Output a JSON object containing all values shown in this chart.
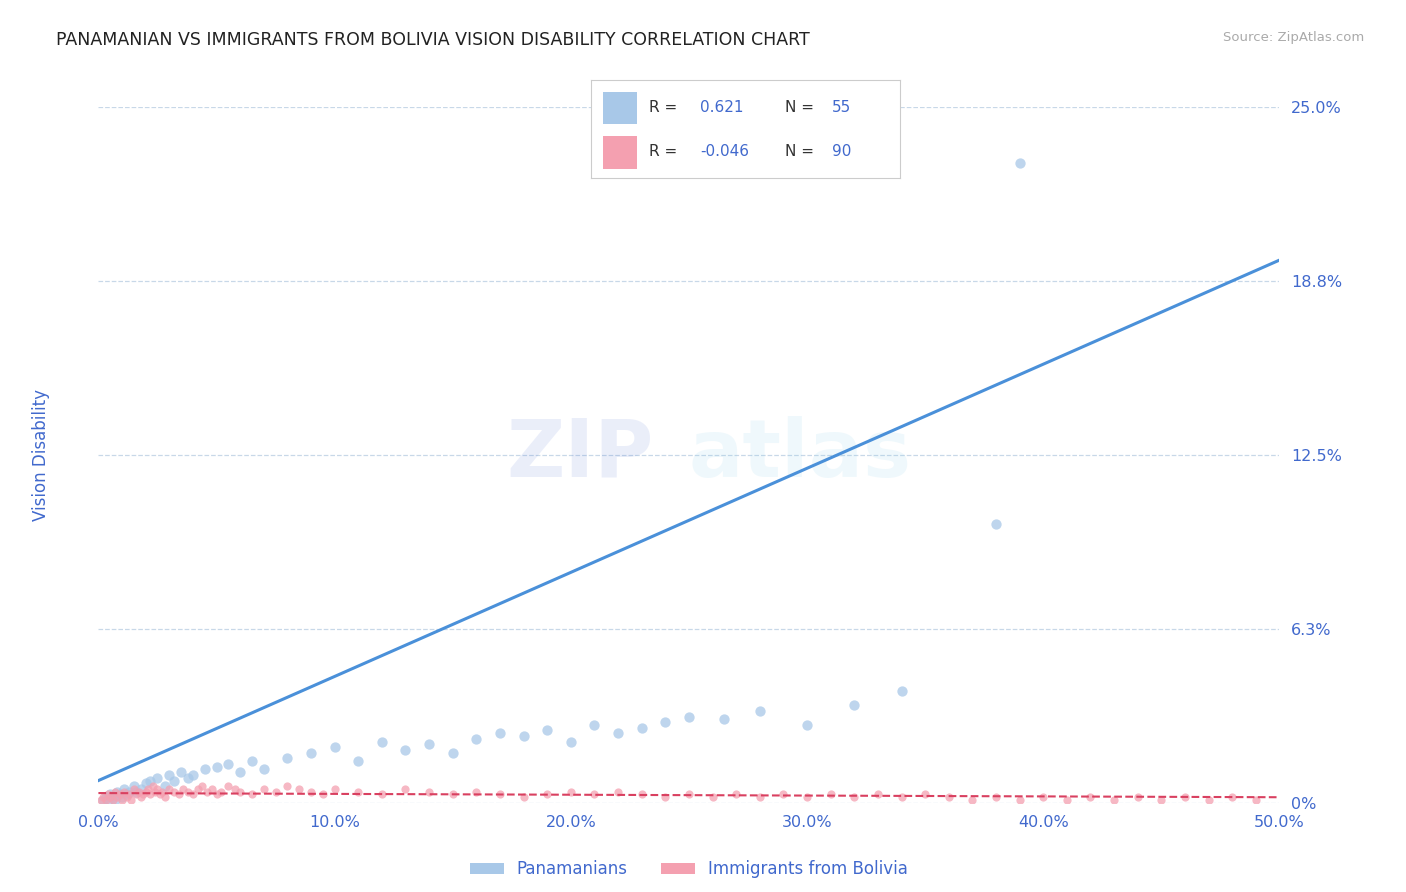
{
  "title": "PANAMANIAN VS IMMIGRANTS FROM BOLIVIA VISION DISABILITY CORRELATION CHART",
  "source": "Source: ZipAtlas.com",
  "ylabel": "Vision Disability",
  "legend_label1": "Panamanians",
  "legend_label2": "Immigrants from Bolivia",
  "R1": 0.621,
  "N1": 55,
  "R2": -0.046,
  "N2": 90,
  "xlim": [
    0.0,
    0.5
  ],
  "ylim": [
    0.0,
    0.25
  ],
  "xticks": [
    0.0,
    0.1,
    0.2,
    0.3,
    0.4,
    0.5
  ],
  "yticks": [
    0.0,
    0.0625,
    0.125,
    0.1875,
    0.25
  ],
  "ytick_labels": [
    "0%",
    "6.3%",
    "12.5%",
    "18.8%",
    "25.0%"
  ],
  "xtick_labels": [
    "0.0%",
    "10.0%",
    "20.0%",
    "30.0%",
    "40.0%",
    "50.0%"
  ],
  "blue_color": "#a8c8e8",
  "pink_color": "#f4a0b0",
  "line_blue": "#4a90d9",
  "line_pink": "#d94060",
  "text_color": "#4169CD",
  "watermark_zip": "ZIP",
  "watermark_atlas": "atlas",
  "background_color": "#ffffff",
  "grid_color": "#c8d8e8",
  "blue_scatter_x": [
    0.002,
    0.003,
    0.004,
    0.005,
    0.006,
    0.007,
    0.008,
    0.009,
    0.01,
    0.011,
    0.012,
    0.013,
    0.015,
    0.016,
    0.018,
    0.02,
    0.022,
    0.025,
    0.028,
    0.03,
    0.032,
    0.035,
    0.038,
    0.04,
    0.045,
    0.05,
    0.055,
    0.06,
    0.065,
    0.07,
    0.08,
    0.09,
    0.1,
    0.11,
    0.12,
    0.13,
    0.14,
    0.15,
    0.16,
    0.17,
    0.18,
    0.19,
    0.2,
    0.21,
    0.22,
    0.23,
    0.24,
    0.25,
    0.265,
    0.28,
    0.3,
    0.32,
    0.34,
    0.38,
    0.39
  ],
  "blue_scatter_y": [
    0.001,
    0.002,
    0.001,
    0.003,
    0.002,
    0.001,
    0.004,
    0.003,
    0.002,
    0.005,
    0.003,
    0.004,
    0.006,
    0.004,
    0.005,
    0.007,
    0.008,
    0.009,
    0.006,
    0.01,
    0.008,
    0.011,
    0.009,
    0.01,
    0.012,
    0.013,
    0.014,
    0.011,
    0.015,
    0.012,
    0.016,
    0.018,
    0.02,
    0.015,
    0.022,
    0.019,
    0.021,
    0.018,
    0.023,
    0.025,
    0.024,
    0.026,
    0.022,
    0.028,
    0.025,
    0.027,
    0.029,
    0.031,
    0.03,
    0.033,
    0.028,
    0.035,
    0.04,
    0.1,
    0.23
  ],
  "pink_scatter_x": [
    0.001,
    0.002,
    0.003,
    0.004,
    0.005,
    0.006,
    0.007,
    0.008,
    0.009,
    0.01,
    0.011,
    0.012,
    0.013,
    0.014,
    0.015,
    0.016,
    0.017,
    0.018,
    0.019,
    0.02,
    0.021,
    0.022,
    0.023,
    0.024,
    0.025,
    0.026,
    0.027,
    0.028,
    0.03,
    0.032,
    0.034,
    0.036,
    0.038,
    0.04,
    0.042,
    0.044,
    0.046,
    0.048,
    0.05,
    0.052,
    0.055,
    0.058,
    0.06,
    0.065,
    0.07,
    0.075,
    0.08,
    0.085,
    0.09,
    0.095,
    0.1,
    0.11,
    0.12,
    0.13,
    0.14,
    0.15,
    0.16,
    0.17,
    0.18,
    0.19,
    0.2,
    0.21,
    0.22,
    0.23,
    0.24,
    0.25,
    0.26,
    0.27,
    0.28,
    0.29,
    0.3,
    0.31,
    0.32,
    0.33,
    0.34,
    0.35,
    0.36,
    0.37,
    0.38,
    0.39,
    0.4,
    0.41,
    0.42,
    0.43,
    0.44,
    0.45,
    0.46,
    0.47,
    0.48,
    0.49
  ],
  "pink_scatter_y": [
    0.001,
    0.002,
    0.001,
    0.003,
    0.002,
    0.001,
    0.004,
    0.002,
    0.003,
    0.001,
    0.004,
    0.002,
    0.003,
    0.001,
    0.005,
    0.003,
    0.004,
    0.002,
    0.003,
    0.004,
    0.005,
    0.003,
    0.006,
    0.004,
    0.005,
    0.003,
    0.004,
    0.002,
    0.005,
    0.004,
    0.003,
    0.005,
    0.004,
    0.003,
    0.005,
    0.006,
    0.004,
    0.005,
    0.003,
    0.004,
    0.006,
    0.005,
    0.004,
    0.003,
    0.005,
    0.004,
    0.006,
    0.005,
    0.004,
    0.003,
    0.005,
    0.004,
    0.003,
    0.005,
    0.004,
    0.003,
    0.004,
    0.003,
    0.002,
    0.003,
    0.004,
    0.003,
    0.004,
    0.003,
    0.002,
    0.003,
    0.002,
    0.003,
    0.002,
    0.003,
    0.002,
    0.003,
    0.002,
    0.003,
    0.002,
    0.003,
    0.002,
    0.001,
    0.002,
    0.001,
    0.002,
    0.001,
    0.002,
    0.001,
    0.002,
    0.001,
    0.002,
    0.001,
    0.002,
    0.001
  ],
  "blue_line_x": [
    0.0,
    0.5
  ],
  "blue_line_y": [
    0.008,
    0.195
  ],
  "pink_line_x": [
    0.0,
    0.5
  ],
  "pink_line_y": [
    0.0035,
    0.002
  ]
}
